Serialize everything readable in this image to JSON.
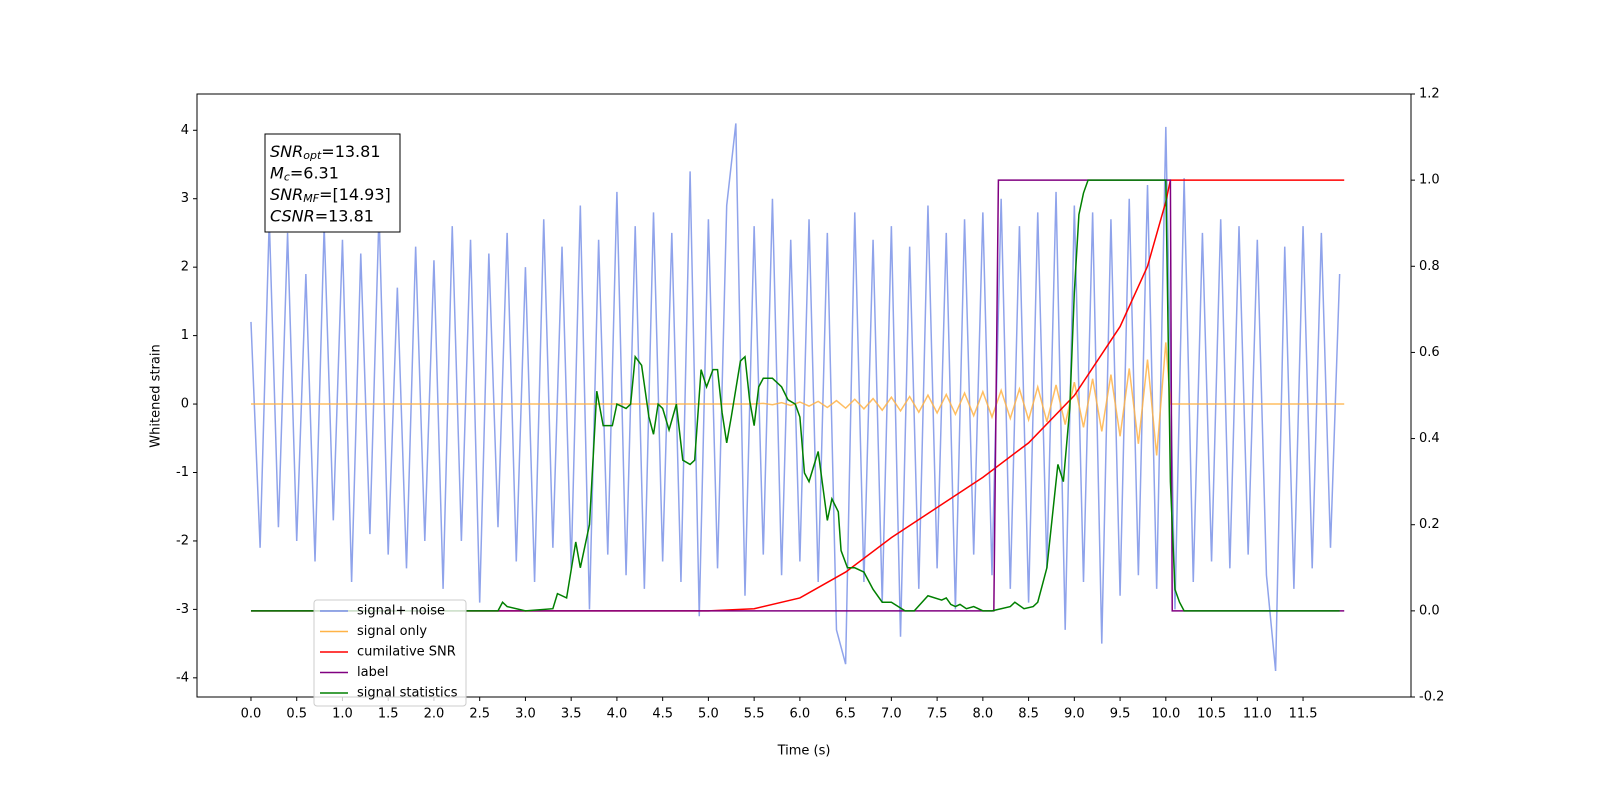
{
  "chart_data": {
    "type": "line",
    "xlabel": "Time (s)",
    "ylabel": "Whitened strain",
    "xlim": [
      -0.59,
      12.68
    ],
    "ylim": [
      -4.28,
      4.53
    ],
    "y2lim": [
      -0.2,
      1.2
    ],
    "xticks": [
      {
        "value": 0,
        "label": "0.0"
      },
      0.5,
      {
        "value": 1,
        "label": "1.0"
      },
      1.5,
      {
        "value": 2,
        "label": "2.0"
      },
      2.5,
      {
        "value": 3,
        "label": "3.0"
      },
      3.5,
      {
        "value": 4,
        "label": "4.0"
      },
      4.5,
      {
        "value": 5,
        "label": "5.0"
      },
      5.5,
      {
        "value": 6,
        "label": "6.0"
      },
      6.5,
      {
        "value": 7,
        "label": "7.0"
      },
      7.5,
      {
        "value": 8,
        "label": "8.0"
      },
      8.5,
      {
        "value": 9,
        "label": "9.0"
      },
      9.5,
      {
        "value": 10,
        "label": "10.0"
      },
      10.5,
      {
        "value": 11,
        "label": "11.0"
      },
      11.5
    ],
    "yticks": [
      -4,
      -3,
      -2,
      -1,
      0,
      1,
      2,
      3,
      4
    ],
    "y2ticks": [
      -0.2,
      {
        "value": 0,
        "label": "0.0"
      },
      0.2,
      0.4,
      0.6,
      0.8,
      {
        "value": 1,
        "label": "1.0"
      },
      1.2
    ],
    "grid": false,
    "legend": "lower left",
    "annotations": [
      {
        "main": "SNR",
        "sub": "opt",
        "rest": "=13.81"
      },
      {
        "main": "M",
        "sub": "c",
        "rest": "=6.31"
      },
      {
        "main": "SNR",
        "sub": "MF",
        "rest": "=[14.93]"
      },
      {
        "main": "CSNR",
        "rest": "=13.81"
      }
    ],
    "series": [
      {
        "name": "signal+ noise",
        "color": "#7b93e8",
        "x": [
          0,
          0.1,
          0.2,
          0.3,
          0.4,
          0.5,
          0.6,
          0.7,
          0.8,
          0.9,
          1,
          1.1,
          1.2,
          1.3,
          1.4,
          1.5,
          1.6,
          1.7,
          1.8,
          1.9,
          2,
          2.1,
          2.2,
          2.3,
          2.4,
          2.5,
          2.6,
          2.7,
          2.8,
          2.9,
          3,
          3.1,
          3.2,
          3.3,
          3.4,
          3.5,
          3.6,
          3.7,
          3.8,
          3.9,
          4,
          4.1,
          4.2,
          4.3,
          4.4,
          4.5,
          4.6,
          4.7,
          4.8,
          4.9,
          5,
          5.1,
          5.2,
          5.3,
          5.4,
          5.5,
          5.6,
          5.7,
          5.8,
          5.9,
          6,
          6.1,
          6.2,
          6.3,
          6.4,
          6.5,
          6.6,
          6.7,
          6.8,
          6.9,
          7,
          7.1,
          7.2,
          7.3,
          7.4,
          7.5,
          7.6,
          7.7,
          7.8,
          7.9,
          8,
          8.1,
          8.2,
          8.3,
          8.4,
          8.5,
          8.6,
          8.7,
          8.8,
          8.9,
          9,
          9.1,
          9.2,
          9.3,
          9.4,
          9.5,
          9.6,
          9.7,
          9.8,
          9.9,
          10,
          10.1,
          10.2,
          10.3,
          10.4,
          10.5,
          10.6,
          10.7,
          10.8,
          10.9,
          11,
          11.1,
          11.2,
          11.3,
          11.4,
          11.5,
          11.6,
          11.7,
          11.8,
          11.9
        ],
        "values": [
          1.2,
          -2.1,
          2.7,
          -1.8,
          2.5,
          -2.0,
          1.9,
          -2.3,
          2.6,
          -1.7,
          2.4,
          -2.6,
          2.2,
          -1.9,
          2.8,
          -2.2,
          1.7,
          -2.4,
          2.3,
          -2.0,
          2.1,
          -2.7,
          2.6,
          -2.0,
          2.4,
          -2.9,
          2.2,
          -1.8,
          2.5,
          -2.3,
          2.0,
          -2.6,
          2.7,
          -2.1,
          2.3,
          -2.4,
          2.9,
          -3.0,
          2.4,
          -2.2,
          3.1,
          -2.5,
          2.6,
          -2.7,
          2.8,
          -2.3,
          2.5,
          -2.6,
          3.4,
          -3.1,
          2.7,
          -2.4,
          2.9,
          4.1,
          -2.8,
          2.6,
          -2.2,
          3.0,
          -2.5,
          2.4,
          -2.3,
          2.7,
          -2.6,
          2.5,
          -3.3,
          -3.8,
          2.8,
          -2.6,
          2.4,
          -2.9,
          2.6,
          -3.4,
          2.3,
          -2.7,
          2.9,
          -2.4,
          2.5,
          -3.0,
          2.7,
          -2.2,
          2.8,
          -2.5,
          3.0,
          -2.7,
          2.6,
          -2.9,
          2.8,
          -2.4,
          3.1,
          -3.3,
          2.9,
          -2.6,
          2.8,
          -3.5,
          2.7,
          -2.8,
          3.0,
          -2.5,
          3.2,
          -2.7,
          4.05,
          -3.0,
          3.3,
          -2.6,
          2.5,
          -2.3,
          2.7,
          -2.4,
          2.6,
          -2.2,
          2.4,
          -2.5,
          -3.9,
          2.3,
          -2.7,
          2.6,
          -2.4,
          2.5,
          -2.1,
          1.9
        ]
      },
      {
        "name": "signal only",
        "color": "#ffb347",
        "x": [
          0,
          5.5,
          5.6,
          5.7,
          5.8,
          5.9,
          6,
          6.1,
          6.2,
          6.3,
          6.4,
          6.5,
          6.6,
          6.7,
          6.8,
          6.9,
          7,
          7.1,
          7.2,
          7.3,
          7.4,
          7.5,
          7.6,
          7.7,
          7.8,
          7.9,
          8,
          8.1,
          8.2,
          8.3,
          8.4,
          8.5,
          8.6,
          8.7,
          8.8,
          8.9,
          9,
          9.1,
          9.2,
          9.3,
          9.4,
          9.5,
          9.6,
          9.7,
          9.8,
          9.9,
          10,
          10.05,
          11.95
        ],
        "values": [
          0,
          0,
          0.01,
          -0.01,
          0.02,
          -0.02,
          0.03,
          -0.03,
          0.04,
          -0.05,
          0.05,
          -0.06,
          0.07,
          -0.07,
          0.08,
          -0.09,
          0.1,
          -0.1,
          0.11,
          -0.12,
          0.13,
          -0.13,
          0.14,
          -0.15,
          0.16,
          -0.17,
          0.18,
          -0.19,
          0.2,
          -0.21,
          0.22,
          -0.23,
          0.25,
          -0.26,
          0.28,
          -0.3,
          0.32,
          -0.34,
          0.37,
          -0.4,
          0.43,
          -0.47,
          0.52,
          -0.58,
          0.65,
          -0.75,
          0.9,
          0,
          0
        ]
      },
      {
        "name": "cumilative SNR",
        "color": "#ff0000",
        "axis": "y2",
        "x": [
          0,
          5,
          5.5,
          6,
          6.5,
          7,
          7.5,
          8,
          8.5,
          9,
          9.5,
          9.8,
          10,
          10.05,
          11.95
        ],
        "values": [
          0,
          0,
          0.005,
          0.03,
          0.09,
          0.17,
          0.24,
          0.31,
          0.39,
          0.5,
          0.66,
          0.8,
          0.95,
          1,
          1
        ]
      },
      {
        "name": "label",
        "color": "#800080",
        "axis": "y2",
        "x": [
          0,
          8.12,
          8.17,
          10.05,
          10.07,
          11.95
        ],
        "values": [
          0,
          0,
          1,
          1,
          0,
          0
        ]
      },
      {
        "name": "signal statistics",
        "color": "#008000",
        "axis": "y2",
        "x": [
          0,
          2.7,
          2.75,
          2.8,
          3.0,
          3.3,
          3.35,
          3.45,
          3.55,
          3.6,
          3.7,
          3.78,
          3.85,
          3.95,
          4.0,
          4.1,
          4.15,
          4.2,
          4.27,
          4.35,
          4.4,
          4.45,
          4.5,
          4.57,
          4.65,
          4.72,
          4.8,
          4.85,
          4.92,
          4.98,
          5.05,
          5.1,
          5.15,
          5.2,
          5.25,
          5.35,
          5.4,
          5.45,
          5.5,
          5.55,
          5.6,
          5.7,
          5.8,
          5.87,
          5.95,
          6.0,
          6.05,
          6.1,
          6.2,
          6.25,
          6.3,
          6.35,
          6.42,
          6.45,
          6.52,
          6.6,
          6.7,
          6.8,
          6.9,
          7.0,
          7.15,
          7.25,
          7.4,
          7.55,
          7.6,
          7.65,
          7.7,
          7.75,
          7.82,
          7.9,
          8.0,
          8.1,
          8.3,
          8.35,
          8.45,
          8.55,
          8.6,
          8.65,
          8.7,
          8.75,
          8.82,
          8.88,
          8.95,
          9.0,
          9.05,
          9.1,
          9.15,
          9.5,
          10.0,
          10.05,
          10.1,
          10.15,
          10.2,
          11.9
        ],
        "values": [
          0,
          0,
          0.02,
          0.01,
          0,
          0.005,
          0.04,
          0.03,
          0.16,
          0.1,
          0.2,
          0.51,
          0.43,
          0.43,
          0.48,
          0.47,
          0.48,
          0.59,
          0.57,
          0.45,
          0.41,
          0.48,
          0.47,
          0.42,
          0.48,
          0.35,
          0.34,
          0.35,
          0.56,
          0.52,
          0.56,
          0.56,
          0.46,
          0.39,
          0.45,
          0.58,
          0.59,
          0.49,
          0.43,
          0.52,
          0.54,
          0.54,
          0.52,
          0.49,
          0.48,
          0.45,
          0.32,
          0.3,
          0.37,
          0.29,
          0.21,
          0.26,
          0.23,
          0.14,
          0.1,
          0.1,
          0.09,
          0.05,
          0.02,
          0.02,
          0,
          0,
          0.035,
          0.025,
          0.03,
          0.015,
          0.01,
          0.015,
          0.005,
          0.01,
          0,
          0,
          0.01,
          0.02,
          0.005,
          0.01,
          0.02,
          0.06,
          0.1,
          0.2,
          0.34,
          0.3,
          0.47,
          0.74,
          0.92,
          0.97,
          1,
          1,
          1,
          0.3,
          0.05,
          0.02,
          0,
          0
        ]
      }
    ]
  }
}
